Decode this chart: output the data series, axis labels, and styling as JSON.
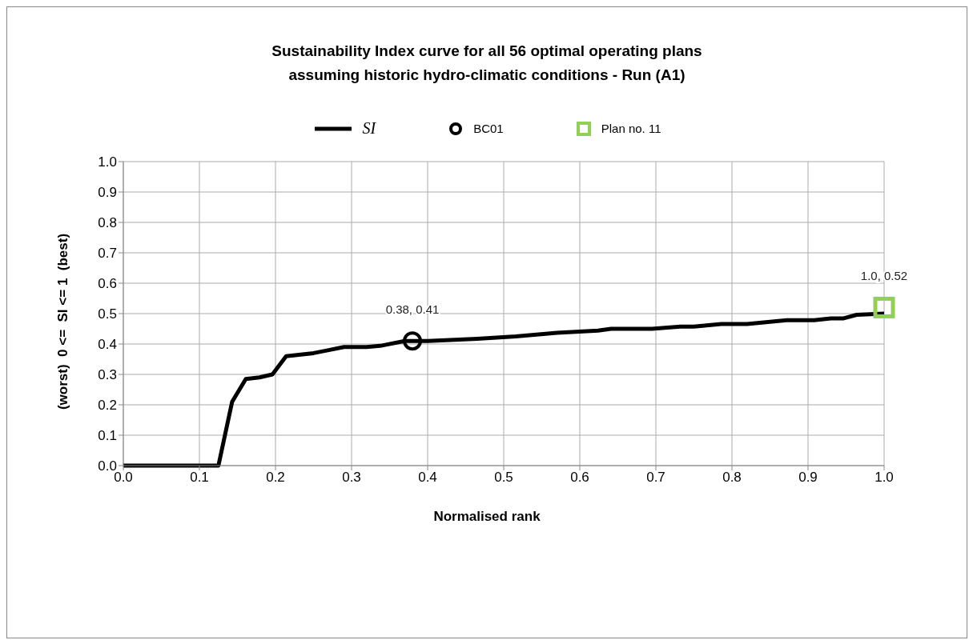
{
  "chart_data": {
    "type": "line",
    "title": "Sustainability Index curve for all 56 optimal operating plans\nassuming historic hydro-climatic conditions - Run (A1)",
    "xlabel": "Normalised rank",
    "ylabel": "(worst)  0 <=  SI <= 1  (best)",
    "xlim": [
      0,
      1
    ],
    "ylim": [
      0,
      1
    ],
    "xticks": [
      {
        "value": 0,
        "label": "0.0"
      },
      {
        "value": 0.1,
        "label": "0.1"
      },
      {
        "value": 0.2,
        "label": "0.2"
      },
      {
        "value": 0.3,
        "label": "0.3"
      },
      {
        "value": 0.4,
        "label": "0.4"
      },
      {
        "value": 0.5,
        "label": "0.5"
      },
      {
        "value": 0.6,
        "label": "0.6"
      },
      {
        "value": 0.7,
        "label": "0.7"
      },
      {
        "value": 0.8,
        "label": "0.8"
      },
      {
        "value": 0.9,
        "label": "0.9"
      },
      {
        "value": 1,
        "label": "1.0"
      }
    ],
    "yticks": [
      {
        "value": 0,
        "label": "0.0"
      },
      {
        "value": 0.1,
        "label": "0.1"
      },
      {
        "value": 0.2,
        "label": "0.2"
      },
      {
        "value": 0.3,
        "label": "0.3"
      },
      {
        "value": 0.4,
        "label": "0.4"
      },
      {
        "value": 0.5,
        "label": "0.5"
      },
      {
        "value": 0.6,
        "label": "0.6"
      },
      {
        "value": 0.7,
        "label": "0.7"
      },
      {
        "value": 0.8,
        "label": "0.8"
      },
      {
        "value": 0.9,
        "label": "0.9"
      },
      {
        "value": 1,
        "label": "1.0"
      }
    ],
    "grid": true,
    "legend": "top",
    "line_style": "solid",
    "series": [
      {
        "name": "SI",
        "type": "line",
        "color": "#000000",
        "marker": "none",
        "x": [
          0,
          0.125,
          0.143,
          0.161,
          0.179,
          0.196,
          0.214,
          0.25,
          0.27,
          0.29,
          0.32,
          0.34,
          0.37,
          0.4,
          0.465,
          0.516,
          0.57,
          0.624,
          0.641,
          0.695,
          0.732,
          0.75,
          0.786,
          0.82,
          0.872,
          0.908,
          0.93,
          0.946,
          0.964,
          1.0
        ],
        "values": [
          0,
          0,
          0.21,
          0.285,
          0.29,
          0.3,
          0.36,
          0.37,
          0.38,
          0.39,
          0.39,
          0.395,
          0.41,
          0.41,
          0.417,
          0.425,
          0.437,
          0.444,
          0.45,
          0.45,
          0.457,
          0.457,
          0.466,
          0.466,
          0.478,
          0.478,
          0.484,
          0.484,
          0.496,
          0.5
        ]
      },
      {
        "name": "BC01",
        "type": "scatter",
        "color": "#000000",
        "marker": "circle",
        "x": [
          0.38
        ],
        "values": [
          0.41
        ],
        "value_labels": [
          "0.38, 0.41"
        ]
      },
      {
        "name": "Plan no. 11",
        "type": "scatter",
        "color": "#92d050",
        "marker": "square",
        "x": [
          1.0
        ],
        "values": [
          0.52
        ],
        "value_labels": [
          "1.0, 0.52"
        ]
      }
    ]
  }
}
